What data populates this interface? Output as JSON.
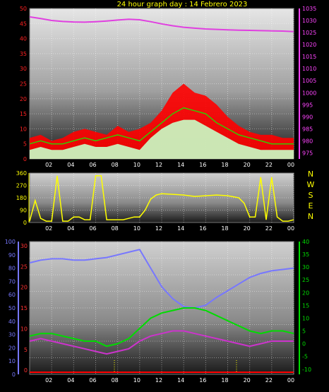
{
  "title": "24 hour graph day : 14 Febrero 2023",
  "colors": {
    "pressure": "#e040e0",
    "gust": "#ff0000",
    "wind_avg": "#33cc00",
    "wind": "#c8ffc8",
    "direction": "#ffff00",
    "humidity": "#7777ff",
    "temperature": "#00dd00",
    "dewpoint": "#cc33cc",
    "rain": "#ff0000"
  },
  "chart_data": [
    {
      "type": "line",
      "x_labels": [
        "02",
        "04",
        "06",
        "08",
        "10",
        "12",
        "14",
        "16",
        "18",
        "20",
        "22",
        "00"
      ],
      "left_ticks": [
        "50",
        "45",
        "40",
        "35",
        "30",
        "25",
        "20",
        "15",
        "10",
        "5",
        "0"
      ],
      "left_range": [
        0,
        50
      ],
      "right_ticks": [
        "1035",
        "1030",
        "1025",
        "1020",
        "1015",
        "1010",
        "1005",
        "1000",
        "995",
        "990",
        "985",
        "980",
        "975"
      ],
      "right_range": [
        972.5,
        1035
      ],
      "grid": true,
      "x": [
        0,
        1,
        2,
        3,
        4,
        5,
        6,
        7,
        8,
        9,
        10,
        11,
        12,
        13,
        14,
        15,
        16,
        17,
        18,
        19,
        20,
        21,
        22,
        23,
        24
      ],
      "series": [
        {
          "key": "gust",
          "type": "area",
          "values": [
            7,
            8,
            6,
            7,
            9,
            10,
            9,
            8,
            11,
            9,
            10,
            12,
            16,
            22,
            25,
            22,
            21,
            18,
            14,
            11,
            9,
            8,
            8,
            7,
            7
          ]
        },
        {
          "key": "wind_avg",
          "type": "line",
          "values": [
            5,
            6,
            5,
            5,
            6,
            7,
            6,
            7,
            8,
            7,
            6,
            9,
            12,
            15,
            17,
            16,
            15,
            12,
            10,
            8,
            7,
            6,
            5,
            5,
            5
          ]
        },
        {
          "key": "wind",
          "type": "area",
          "values": [
            3,
            4,
            3,
            3,
            4,
            5,
            4,
            4,
            5,
            4,
            3,
            7,
            10,
            12,
            13,
            13,
            11,
            9,
            7,
            5,
            4,
            3,
            3,
            3,
            3
          ]
        },
        {
          "key": "pressure",
          "type": "line",
          "axis": "right",
          "values": [
            1031.5,
            1030.8,
            1030.0,
            1029.6,
            1029.4,
            1029.3,
            1029.5,
            1029.8,
            1030.2,
            1030.5,
            1030.3,
            1029.5,
            1028.6,
            1027.8,
            1027.2,
            1026.8,
            1026.5,
            1026.3,
            1026.1,
            1026.0,
            1025.9,
            1025.8,
            1025.7,
            1025.6,
            1025.4
          ]
        }
      ]
    },
    {
      "type": "line",
      "x_labels": [
        "02",
        "04",
        "06",
        "08",
        "10",
        "12",
        "14",
        "16",
        "18",
        "20",
        "22",
        "00"
      ],
      "left_ticks": [
        "360",
        "270",
        "180",
        "90",
        "0"
      ],
      "left_range": [
        0,
        360
      ],
      "right_labels": [
        "N",
        "W",
        "S",
        "E",
        "N"
      ],
      "grid": true,
      "x": [
        0,
        0.5,
        1,
        1.5,
        2,
        2.5,
        3,
        3.5,
        4,
        4.5,
        5,
        5.5,
        6,
        6.5,
        7,
        7.5,
        8,
        8.5,
        9,
        9.5,
        10,
        10.5,
        11,
        11.5,
        12,
        13,
        14,
        15,
        16,
        17,
        18,
        19,
        19.5,
        20,
        20.5,
        21,
        21.5,
        22,
        22.5,
        23,
        23.5,
        24
      ],
      "series": [
        {
          "key": "direction",
          "values": [
            10,
            160,
            30,
            10,
            10,
            340,
            10,
            10,
            40,
            40,
            20,
            20,
            340,
            340,
            20,
            20,
            20,
            20,
            30,
            40,
            40,
            90,
            170,
            200,
            210,
            205,
            200,
            190,
            195,
            200,
            195,
            180,
            140,
            40,
            40,
            330,
            20,
            330,
            40,
            10,
            10,
            20
          ]
        }
      ]
    },
    {
      "type": "line",
      "x_labels": [
        "02",
        "04",
        "06",
        "08",
        "10",
        "12",
        "14",
        "16",
        "18",
        "20",
        "22",
        "00"
      ],
      "left_ticks": [
        "100",
        "90",
        "80",
        "70",
        "60",
        "50",
        "40",
        "30",
        "20",
        "10",
        "0"
      ],
      "left_range": [
        0,
        100
      ],
      "mid_ticks": [
        "30",
        "25",
        "20",
        "15",
        "10",
        "5",
        "0"
      ],
      "mid_range": [
        -1,
        31
      ],
      "right_ticks": [
        "40",
        "35",
        "30",
        "25",
        "20",
        "15",
        "10",
        "5",
        "0",
        "-5",
        "-10"
      ],
      "right_range": [
        -12,
        40
      ],
      "grid": true,
      "rain_marks": [
        7.7,
        18.8
      ],
      "x": [
        0,
        1,
        2,
        3,
        4,
        5,
        6,
        7,
        8,
        9,
        10,
        11,
        12,
        13,
        14,
        15,
        16,
        17,
        18,
        19,
        20,
        21,
        22,
        23,
        24
      ],
      "series": [
        {
          "key": "humidity",
          "axis": "left",
          "values": [
            84,
            86,
            87,
            87,
            86,
            86,
            87,
            88,
            90,
            92,
            94,
            80,
            66,
            57,
            51,
            50,
            52,
            58,
            63,
            68,
            73,
            76,
            78,
            79,
            80
          ]
        },
        {
          "key": "temperature",
          "axis": "right",
          "values": [
            3,
            4,
            4,
            3,
            2,
            1,
            1,
            -1,
            0,
            2,
            6,
            10,
            12,
            13,
            14,
            14,
            13,
            11,
            9,
            7,
            5,
            4,
            5,
            5,
            4
          ]
        },
        {
          "key": "dewpoint",
          "axis": "right",
          "values": [
            1,
            2,
            1,
            0,
            -1,
            -2,
            -3,
            -4,
            -3,
            -2,
            1,
            3,
            4,
            5,
            5,
            4,
            3,
            2,
            1,
            0,
            -1,
            0,
            1,
            1,
            1
          ]
        }
      ]
    }
  ]
}
